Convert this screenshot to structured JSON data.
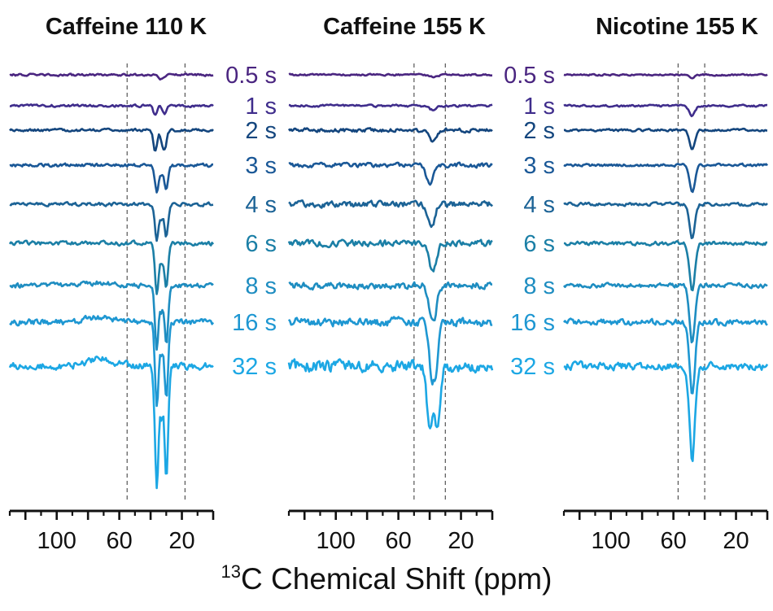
{
  "figure": {
    "xlabel_superscript": "13",
    "xlabel_rest": "C Chemical Shift (ppm)"
  },
  "chart_data": [
    {
      "type": "line",
      "title": "Caffeine 110 K",
      "xlabel": "13C Chemical Shift (ppm)",
      "x_axis": {
        "reversed": true,
        "range": [
          130,
          0
        ],
        "tick_labels": [
          100,
          60,
          20
        ],
        "major_ticks": [
          120,
          100,
          80,
          60,
          40,
          20,
          0
        ],
        "minor_ticks": [
          130,
          110,
          90,
          70,
          50,
          30,
          10
        ]
      },
      "dashed_guides_ppm": [
        55,
        18
      ],
      "series": [
        {
          "name": "0.5 s",
          "color": "#4a2580",
          "peaks_ppm": [
            33
          ],
          "depth": 0.11
        },
        {
          "name": "1 s",
          "color": "#3f2d8c",
          "peaks_ppm": [
            37,
            31
          ],
          "depth": 0.27
        },
        {
          "name": "2 s",
          "color": "#14467e",
          "peaks_ppm": [
            37,
            31
          ],
          "depth": 0.58
        },
        {
          "name": "3 s",
          "color": "#1a5897",
          "peaks_ppm": [
            36,
            30
          ],
          "depth": 0.77
        },
        {
          "name": "4 s",
          "color": "#1c6396",
          "peaks_ppm": [
            36,
            30
          ],
          "depth": 1.0
        },
        {
          "name": "6 s",
          "color": "#1b7fa6",
          "peaks_ppm": [
            36,
            30
          ],
          "depth": 1.4
        },
        {
          "name": "8 s",
          "color": "#1e8dc1",
          "peaks_ppm": [
            36,
            30
          ],
          "depth": 1.75
        },
        {
          "name": "16 s",
          "color": "#1e97d2",
          "peaks_ppm": [
            36,
            30
          ],
          "depth": 2.3
        },
        {
          "name": "32 s",
          "color": "#1ca7e4",
          "peaks_ppm": [
            36,
            30
          ],
          "depth": 3.35
        }
      ]
    },
    {
      "type": "line",
      "title": "Caffeine 155 K",
      "xlabel": "13C Chemical Shift (ppm)",
      "x_axis": {
        "reversed": true,
        "range": [
          130,
          0
        ],
        "tick_labels": [
          100,
          60,
          20
        ],
        "major_ticks": [
          120,
          100,
          80,
          60,
          40,
          20,
          0
        ],
        "minor_ticks": [
          130,
          110,
          90,
          70,
          50,
          30,
          10
        ]
      },
      "dashed_guides_ppm": [
        50,
        30
      ],
      "series": [
        {
          "name": "0.5 s",
          "color": "#4a2580",
          "peaks_ppm": [
            38
          ],
          "depth": 0.05
        },
        {
          "name": "1 s",
          "color": "#3f2d8c",
          "peaks_ppm": [
            38
          ],
          "depth": 0.12
        },
        {
          "name": "2 s",
          "color": "#14467e",
          "peaks_ppm": [
            38
          ],
          "depth": 0.3
        },
        {
          "name": "3 s",
          "color": "#1a5897",
          "peaks_ppm": [
            40
          ],
          "depth": 0.5
        },
        {
          "name": "4 s",
          "color": "#1c6396",
          "peaks_ppm": [
            39
          ],
          "depth": 0.65
        },
        {
          "name": "6 s",
          "color": "#1b7fa6",
          "peaks_ppm": [
            38
          ],
          "depth": 0.8
        },
        {
          "name": "8 s",
          "color": "#1e8dc1",
          "peaks_ppm": [
            38
          ],
          "depth": 1.05
        },
        {
          "name": "16 s",
          "color": "#1e97d2",
          "peaks_ppm": [
            39,
            36
          ],
          "depth": 1.25
        },
        {
          "name": "32 s",
          "color": "#1ca7e4",
          "peaks_ppm": [
            40,
            35
          ],
          "depth": 1.8
        }
      ]
    },
    {
      "type": "line",
      "title": "Nicotine 155 K",
      "xlabel": "13C Chemical Shift (ppm)",
      "x_axis": {
        "reversed": true,
        "range": [
          130,
          0
        ],
        "tick_labels": [
          100,
          60,
          20
        ],
        "major_ticks": [
          120,
          100,
          80,
          60,
          40,
          20,
          0
        ],
        "minor_ticks": [
          130,
          110,
          90,
          70,
          50,
          30,
          10
        ]
      },
      "dashed_guides_ppm": [
        57,
        40
      ],
      "series": [
        {
          "name": "0.5 s",
          "color": "#4a2580",
          "peaks_ppm": [
            48
          ],
          "depth": 0.08
        },
        {
          "name": "1 s",
          "color": "#3f2d8c",
          "peaks_ppm": [
            48
          ],
          "depth": 0.28
        },
        {
          "name": "2 s",
          "color": "#14467e",
          "peaks_ppm": [
            48
          ],
          "depth": 0.52
        },
        {
          "name": "3 s",
          "color": "#1a5897",
          "peaks_ppm": [
            48
          ],
          "depth": 0.72
        },
        {
          "name": "4 s",
          "color": "#1c6396",
          "peaks_ppm": [
            48
          ],
          "depth": 0.95
        },
        {
          "name": "6 s",
          "color": "#1b7fa6",
          "peaks_ppm": [
            48
          ],
          "depth": 1.3
        },
        {
          "name": "8 s",
          "color": "#1e8dc1",
          "peaks_ppm": [
            48
          ],
          "depth": 1.6
        },
        {
          "name": "16 s",
          "color": "#1e97d2",
          "peaks_ppm": [
            48
          ],
          "depth": 2.0
        },
        {
          "name": "32 s",
          "color": "#1ca7e4",
          "peaks_ppm": [
            48
          ],
          "depth": 2.6
        }
      ]
    }
  ]
}
